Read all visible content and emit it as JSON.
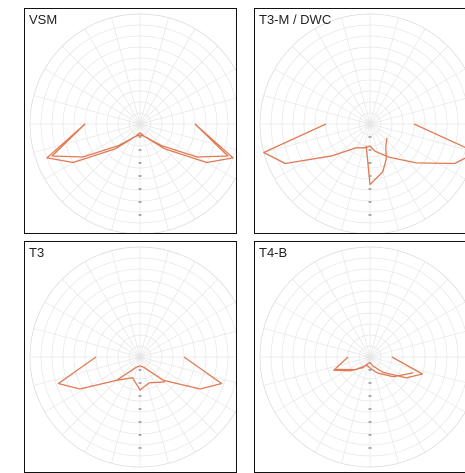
{
  "chart_data": [
    {
      "type": "polar",
      "title": "VSM",
      "grid": true,
      "curves": [
        {
          "color": "#e07a55",
          "points": [
            [
              -90,
              0.5
            ],
            [
              -70,
              0.9
            ],
            [
              -60,
              0.7
            ],
            [
              -45,
              0.32
            ],
            [
              -20,
              0.12
            ],
            [
              0,
              0.08
            ],
            [
              20,
              0.12
            ],
            [
              45,
              0.32
            ],
            [
              60,
              0.7
            ],
            [
              70,
              0.9
            ],
            [
              90,
              0.5
            ]
          ]
        },
        {
          "color": "#e07a55",
          "points": [
            [
              -90,
              0.5
            ],
            [
              -70,
              0.85
            ],
            [
              -60,
              0.6
            ],
            [
              -45,
              0.28
            ],
            [
              -20,
              0.12
            ],
            [
              0,
              0.1
            ],
            [
              20,
              0.12
            ],
            [
              45,
              0.28
            ],
            [
              60,
              0.6
            ],
            [
              70,
              0.85
            ],
            [
              90,
              0.5
            ]
          ]
        }
      ]
    },
    {
      "type": "polar",
      "title": "T3-M / DWC",
      "grid": true,
      "curves": [
        {
          "color": "#e07a55",
          "points": [
            [
              -90,
              0.4
            ],
            [
              -75,
              1.0
            ],
            [
              -65,
              0.85
            ],
            [
              -50,
              0.45
            ],
            [
              -30,
              0.25
            ],
            [
              -10,
              0.22
            ],
            [
              0,
              0.2
            ],
            [
              10,
              0.25
            ],
            [
              30,
              0.35
            ],
            [
              50,
              0.55
            ],
            [
              65,
              0.85
            ],
            [
              75,
              1.0
            ],
            [
              90,
              0.4
            ]
          ]
        },
        {
          "color": "#e07a55",
          "points": [
            [
              -10,
              0.2
            ],
            [
              0,
              0.55
            ],
            [
              15,
              0.45
            ],
            [
              25,
              0.35
            ],
            [
              35,
              0.25
            ],
            [
              50,
              0.2
            ]
          ]
        }
      ]
    },
    {
      "type": "polar",
      "title": "T3",
      "grid": true,
      "curves": [
        {
          "color": "#e07a55",
          "points": [
            [
              -90,
              0.4
            ],
            [
              -72,
              0.78
            ],
            [
              -62,
              0.62
            ],
            [
              -45,
              0.3
            ],
            [
              -20,
              0.1
            ],
            [
              0,
              0.08
            ],
            [
              20,
              0.1
            ],
            [
              45,
              0.3
            ],
            [
              62,
              0.62
            ],
            [
              72,
              0.78
            ],
            [
              90,
              0.4
            ]
          ]
        },
        {
          "color": "#e07a55",
          "points": [
            [
              -45,
              0.3
            ],
            [
              -20,
              0.2
            ],
            [
              0,
              0.3
            ],
            [
              20,
              0.25
            ],
            [
              45,
              0.32
            ]
          ]
        }
      ]
    },
    {
      "type": "polar",
      "title": "T4-B",
      "grid": true,
      "curves": [
        {
          "color": "#e07a55",
          "points": [
            [
              -90,
              0.2
            ],
            [
              -70,
              0.35
            ],
            [
              -55,
              0.22
            ],
            [
              -35,
              0.12
            ],
            [
              -15,
              0.06
            ],
            [
              0,
              0.05
            ],
            [
              15,
              0.08
            ],
            [
              40,
              0.18
            ],
            [
              60,
              0.38
            ],
            [
              72,
              0.5
            ],
            [
              90,
              0.2
            ]
          ]
        },
        {
          "color": "#e07a55",
          "points": [
            [
              -70,
              0.33
            ],
            [
              -50,
              0.18
            ],
            [
              -20,
              0.08
            ],
            [
              0,
              0.1
            ],
            [
              25,
              0.16
            ],
            [
              50,
              0.28
            ],
            [
              70,
              0.42
            ]
          ]
        }
      ]
    }
  ]
}
